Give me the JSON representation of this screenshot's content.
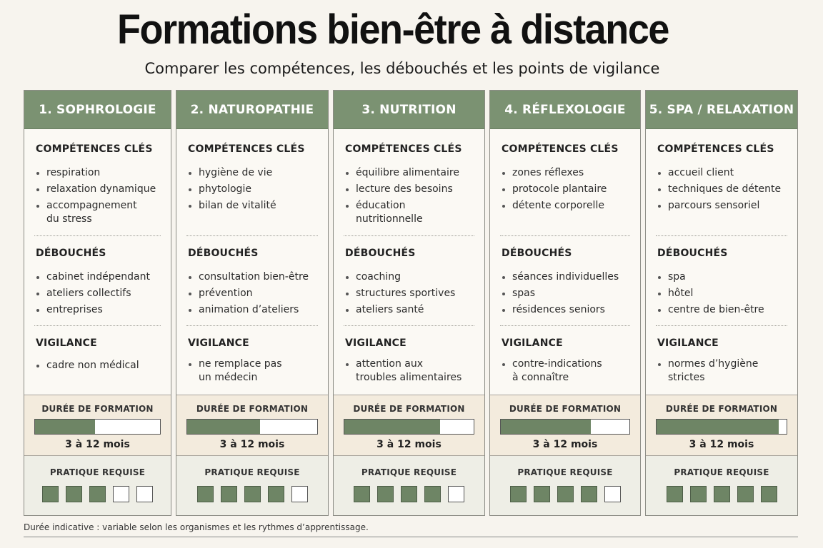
{
  "title": "Formations bien-être à distance",
  "subtitle": "Comparer les compétences, les débouchés et les points de vigilance",
  "labels": {
    "competences": "COMPÉTENCES CLÉS",
    "debouches": "DÉBOUCHÉS",
    "vigilance": "VIGILANCE",
    "duree": "DURÉE DE FORMATION",
    "pratique": "PRATIQUE REQUISE"
  },
  "cards": [
    {
      "title": "1. SOPHROLOGIE",
      "competences": [
        "respiration",
        "relaxation dynamique",
        "accompagnement du stress"
      ],
      "debouches": [
        "cabinet indépendant",
        "ateliers collectifs",
        "entreprises"
      ],
      "vigilance": [
        "cadre non médical"
      ],
      "duree": "3 à 12 mois",
      "duree_fill": 0.48,
      "pratique_level": 3,
      "pratique_max": 5
    },
    {
      "title": "2. NATUROPATHIE",
      "competences": [
        "hygiène de vie",
        "phytologie",
        "bilan de vitalité"
      ],
      "debouches": [
        "consultation bien-être",
        "prévention",
        "animation d’ateliers"
      ],
      "vigilance": [
        "ne remplace pas un médecin"
      ],
      "duree": "3 à 12 mois",
      "duree_fill": 0.56,
      "pratique_level": 4,
      "pratique_max": 5
    },
    {
      "title": "3. NUTRITION",
      "competences": [
        "équilibre alimentaire",
        "lecture des besoins",
        "éducation nutritionnelle"
      ],
      "debouches": [
        "coaching",
        "structures sportives",
        "ateliers santé"
      ],
      "vigilance": [
        "attention aux troubles alimentaires"
      ],
      "duree": "3 à 12 mois",
      "duree_fill": 0.74,
      "pratique_level": 4,
      "pratique_max": 5
    },
    {
      "title": "4. RÉFLEXOLOGIE",
      "competences": [
        "zones réflexes",
        "protocole plantaire",
        "détente corporelle"
      ],
      "debouches": [
        "séances individuelles",
        "spas",
        "résidences seniors"
      ],
      "vigilance": [
        "contre-indications à connaître"
      ],
      "duree": "3 à 12 mois",
      "duree_fill": 0.7,
      "pratique_level": 4,
      "pratique_max": 5
    },
    {
      "title": "5. SPA / RELAXATION",
      "competences": [
        "accueil client",
        "techniques de détente",
        "parcours sensoriel"
      ],
      "debouches": [
        "spa",
        "hôtel",
        "centre de bien-être"
      ],
      "vigilance": [
        "normes d’hygiène strictes"
      ],
      "duree": "3 à 12 mois",
      "duree_fill": 0.94,
      "pratique_level": 5,
      "pratique_max": 5
    }
  ],
  "footnote": "Durée indicative : variable selon les organismes et les rythmes d’apprentissage.",
  "colors": {
    "header_green": "#7b9272",
    "fill_green": "#6e8565",
    "duree_bg": "#f3ebdd",
    "pratique_bg": "#eeeee6"
  }
}
